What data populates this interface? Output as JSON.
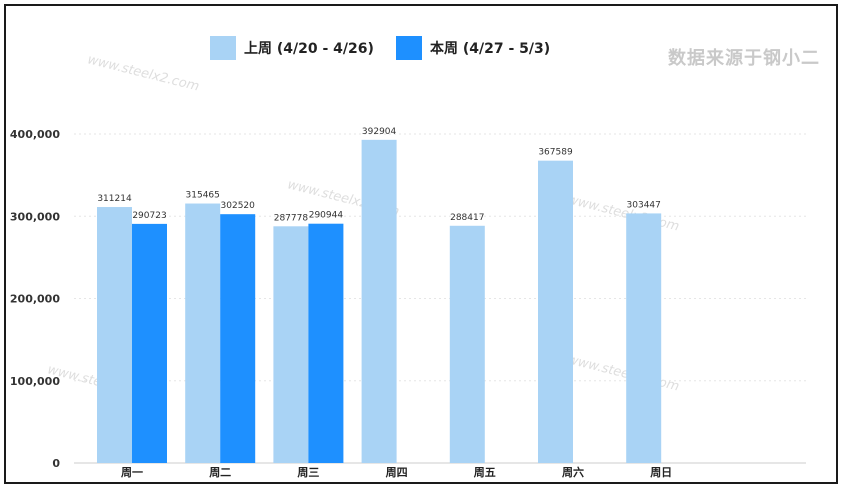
{
  "source_label": "数据来源于钢小二",
  "watermarks": [
    "www.steelx2.com",
    "www.steelx2.com",
    "www.steelx2.com",
    "www.steelx2.com",
    "www.steelx2.com"
  ],
  "colors": {
    "last_week": "#a9d3f5",
    "this_week": "#1e90ff"
  },
  "chart_data": {
    "type": "bar",
    "title": "",
    "xlabel": "",
    "ylabel": "",
    "categories": [
      "周一",
      "周二",
      "周三",
      "周四",
      "周五",
      "周六",
      "周日"
    ],
    "series": [
      {
        "name": "上周 (4/20 - 4/26)",
        "values": [
          311214,
          315465,
          287778,
          392904,
          288417,
          367589,
          303447
        ]
      },
      {
        "name": "本周 (4/27 - 5/3)",
        "values": [
          290723,
          302520,
          290944,
          null,
          null,
          null,
          null
        ]
      }
    ],
    "ylim": [
      0,
      400000
    ],
    "yticks": [
      "0",
      "100,000",
      "200,000",
      "300,000",
      "400,000"
    ],
    "data_labels": true,
    "grid": true,
    "legend_position": "top"
  }
}
